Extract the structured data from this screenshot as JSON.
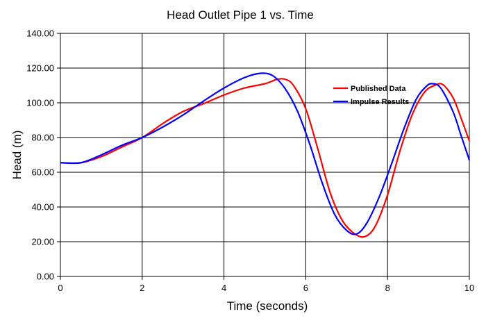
{
  "chart_data": {
    "type": "line",
    "title": "Head Outlet Pipe 1 vs. Time",
    "xlabel": "Time (seconds)",
    "ylabel": "Head (m)",
    "xlim": [
      0,
      10
    ],
    "ylim": [
      0,
      140
    ],
    "xticks": [
      0,
      2,
      4,
      6,
      8,
      10
    ],
    "yticks": [
      0,
      20,
      40,
      60,
      80,
      100,
      120,
      140
    ],
    "xtick_labels": [
      "0",
      "2",
      "4",
      "6",
      "8",
      "10"
    ],
    "ytick_labels": [
      "0.00",
      "20.00",
      "40.00",
      "60.00",
      "80.00",
      "100.00",
      "120.00",
      "140.00"
    ],
    "grid": true,
    "legend_position": "right",
    "series": [
      {
        "name": "Published Data",
        "color": "#ff0000",
        "x": [
          0,
          0.5,
          1.0,
          1.5,
          2.0,
          2.5,
          3.0,
          3.5,
          4.0,
          4.5,
          5.0,
          5.3,
          5.5,
          5.7,
          6.0,
          6.3,
          6.6,
          6.9,
          7.2,
          7.45,
          7.7,
          8.0,
          8.3,
          8.6,
          8.9,
          9.15,
          9.35,
          9.6,
          9.8,
          10.0
        ],
        "y": [
          65.5,
          65.5,
          69,
          74.5,
          80,
          88,
          95,
          99.5,
          104.5,
          108.5,
          111,
          113.5,
          113.5,
          110,
          96.5,
          73,
          48,
          32,
          24.5,
          23,
          29,
          47,
          72,
          93,
          106,
          110,
          110.5,
          103,
          91,
          78
        ]
      },
      {
        "name": "Impulse Results",
        "color": "#0000ff",
        "x": [
          0,
          0.5,
          1.0,
          1.5,
          2.0,
          2.5,
          3.0,
          3.5,
          4.0,
          4.5,
          4.9,
          5.2,
          5.5,
          5.8,
          6.1,
          6.4,
          6.7,
          7.0,
          7.25,
          7.5,
          7.8,
          8.1,
          8.4,
          8.7,
          8.95,
          9.1,
          9.3,
          9.6,
          9.8,
          10.0
        ],
        "y": [
          65.5,
          65.5,
          70,
          75.5,
          80,
          86,
          93,
          101,
          108.5,
          114.5,
          117,
          115.5,
          108,
          95,
          76,
          54,
          36,
          26.5,
          24.5,
          31,
          46,
          65,
          85,
          102,
          109.5,
          111,
          108.5,
          95,
          81,
          67
        ]
      }
    ]
  }
}
